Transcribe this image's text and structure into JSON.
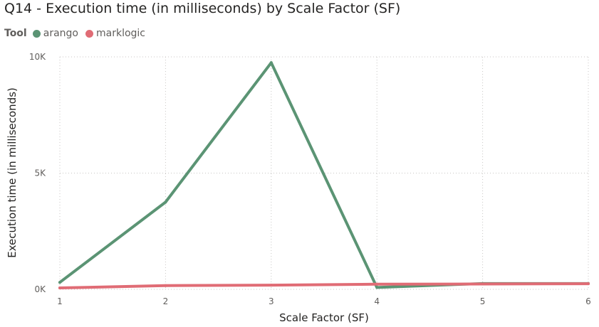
{
  "chart_data": {
    "type": "line",
    "title": "Q14 - Execution time (in milliseconds) by Scale Factor (SF)",
    "legend_title": "Tool",
    "xlabel": "Scale Factor (SF)",
    "ylabel": "Execution time (in milliseconds)",
    "x": [
      1,
      2,
      3,
      4,
      5,
      6
    ],
    "x_tick_labels": [
      "1",
      "2",
      "3",
      "4",
      "5",
      "6"
    ],
    "ylim": [
      0,
      10000
    ],
    "y_ticks": [
      0,
      5000,
      10000
    ],
    "y_tick_labels": [
      "0K",
      "5K",
      "10K"
    ],
    "grid": true,
    "legend_position": "top-left",
    "series": [
      {
        "name": "arango",
        "color": "#5b9474",
        "values": [
          300,
          3750,
          9750,
          80,
          250,
          250
        ]
      },
      {
        "name": "marklogic",
        "color": "#e06c75",
        "values": [
          60,
          160,
          180,
          220,
          230,
          240
        ]
      }
    ]
  }
}
